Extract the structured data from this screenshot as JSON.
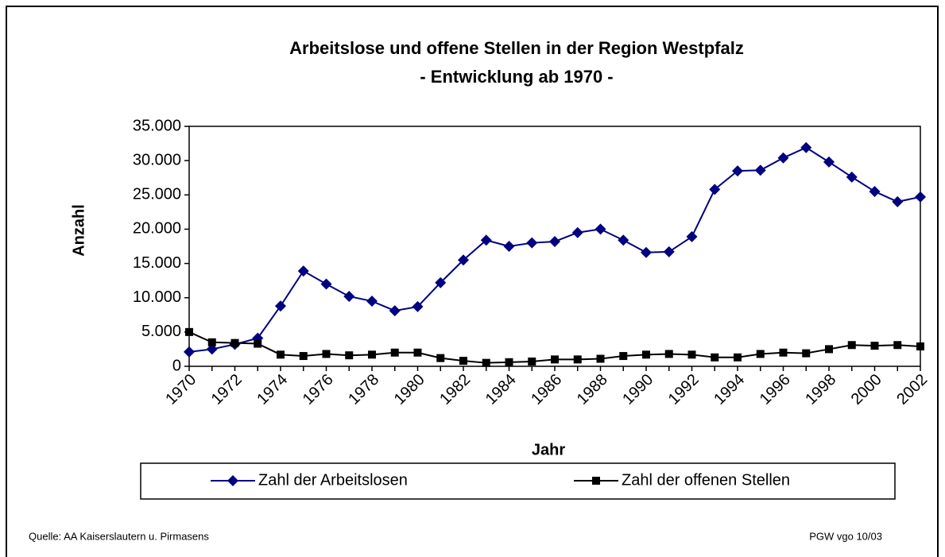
{
  "chart_data": {
    "type": "line",
    "title": "Arbeitslose und offene Stellen in der  Region Westpfalz",
    "subtitle": "- Entwicklung ab 1970 -",
    "x_label": "Jahr",
    "y_label": "Anzahl",
    "categories": [
      "1970",
      null,
      "1972",
      null,
      "1974",
      null,
      "1976",
      null,
      "1978",
      null,
      "1980",
      null,
      "1982",
      null,
      "1984",
      null,
      "1986",
      null,
      "1988",
      null,
      "1990",
      null,
      "1992",
      null,
      "1994",
      null,
      "1996",
      null,
      "1998",
      null,
      "2000",
      null,
      "2002"
    ],
    "series": [
      {
        "name": "Zahl der Arbeitslosen",
        "color": "#000080",
        "marker": "diamond",
        "values": [
          2100,
          2500,
          3200,
          4100,
          8800,
          13900,
          12000,
          10200,
          9500,
          8100,
          8700,
          12200,
          15500,
          18400,
          17500,
          18000,
          18200,
          19500,
          20000,
          18400,
          16600,
          16700,
          18900,
          25800,
          28500,
          28600,
          30400,
          31900,
          29800,
          27600,
          25500,
          24000,
          24700
        ]
      },
      {
        "name": "Zahl der offenen Stellen",
        "color": "#000000",
        "marker": "square",
        "values": [
          5000,
          3500,
          3400,
          3300,
          1700,
          1500,
          1800,
          1600,
          1700,
          2000,
          2000,
          1200,
          800,
          500,
          600,
          700,
          1000,
          1000,
          1100,
          1500,
          1700,
          1800,
          1700,
          1300,
          1300,
          1800,
          2000,
          1900,
          2500,
          3100,
          3000,
          3100,
          2900
        ]
      }
    ],
    "ylim": [
      0,
      35000
    ],
    "yticks": [
      0,
      {
        "value": 5000,
        "label": "5.000"
      },
      {
        "value": 10000,
        "label": "10.000"
      },
      {
        "value": 15000,
        "label": "15.000"
      },
      {
        "value": 20000,
        "label": "20.000"
      },
      {
        "value": 25000,
        "label": "25.000"
      },
      {
        "value": 30000,
        "label": "30.000"
      },
      {
        "value": 35000,
        "label": "35.000"
      }
    ],
    "grid": false,
    "legend": "bottom",
    "source": "Quelle: AA Kaiserslautern u. Pirmasens",
    "credit": "PGW vgo 10/03"
  }
}
